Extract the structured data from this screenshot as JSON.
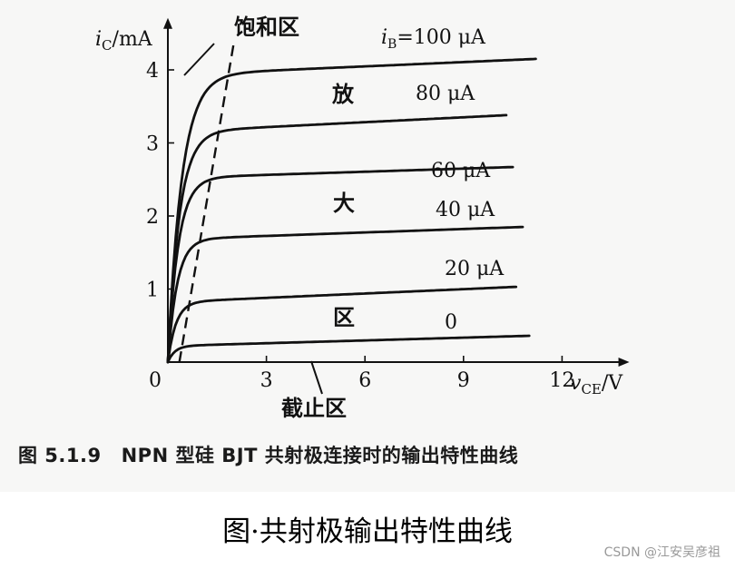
{
  "chart_data": {
    "type": "line",
    "xlabel": "v_CE/V",
    "ylabel": "i_C/mA",
    "x_ticks": [
      "0",
      "3",
      "6",
      "9",
      "12"
    ],
    "y_ticks": [
      "1",
      "2",
      "3",
      "4"
    ],
    "xlim": [
      0,
      13.8
    ],
    "ylim": [
      0,
      4.6
    ],
    "series": [
      {
        "name": "i_B=100 μA",
        "label_prefix": "i",
        "label_sub": "B",
        "label_rest": "=100 μA",
        "knee": 1.2,
        "sat": 3.93,
        "end": 4.15,
        "xmax": 11.2
      },
      {
        "name": "80 μA",
        "knee": 1.0,
        "sat": 3.15,
        "end": 3.38,
        "xmax": 10.3
      },
      {
        "name": "60 μA",
        "knee": 0.9,
        "sat": 2.52,
        "end": 2.67,
        "xmax": 10.5
      },
      {
        "name": "40 μA",
        "knee": 0.8,
        "sat": 1.68,
        "end": 1.85,
        "xmax": 10.8
      },
      {
        "name": "20 μA",
        "knee": 0.7,
        "sat": 0.82,
        "end": 1.03,
        "xmax": 10.6
      },
      {
        "name": "0",
        "knee": 0.6,
        "sat": 0.22,
        "end": 0.36,
        "xmax": 11.0
      }
    ],
    "saturation_boundary": {
      "x": [
        0.35,
        2.0
      ],
      "y": [
        0,
        4.35
      ],
      "style": "dashed"
    },
    "annotations": [
      "饱和区",
      "放",
      "大",
      "区",
      "截止区"
    ],
    "grid": false
  },
  "figure": {
    "caption_number": "图 5.1.9",
    "caption_text": "NPN 型硅 BJT 共射极连接时的输出特性曲线"
  },
  "bottom_caption": "图·共射极输出特性曲线",
  "watermark": "CSDN @江安吴彦祖"
}
